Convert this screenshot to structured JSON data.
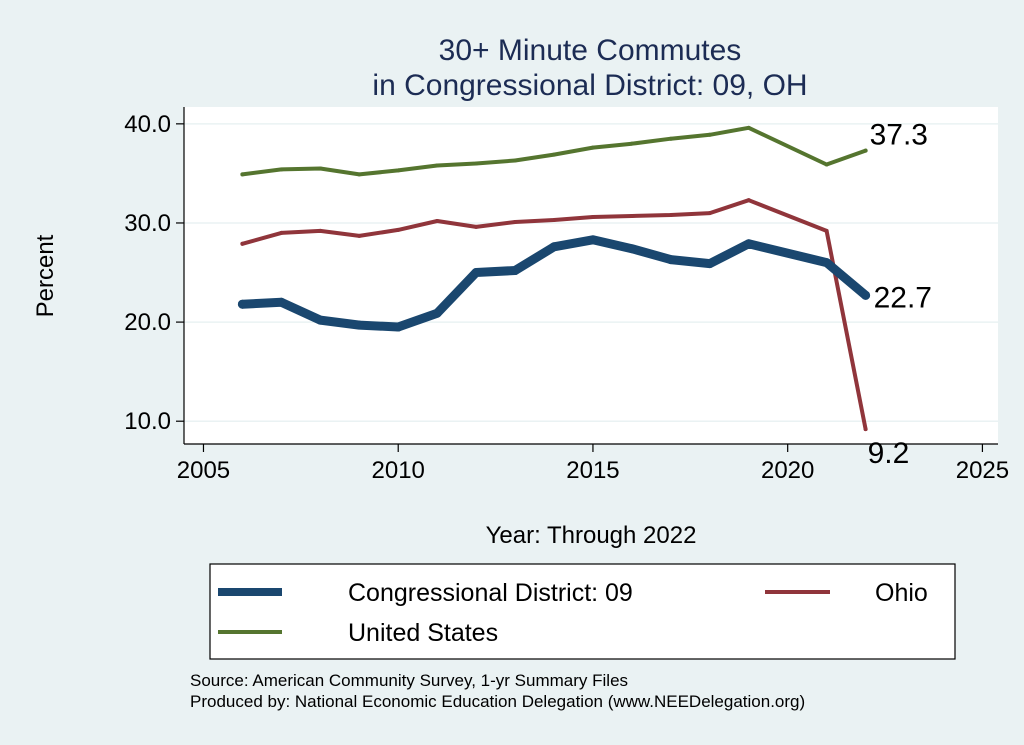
{
  "chart_data": {
    "type": "line",
    "title": [
      "30+ Minute Commutes",
      "in Congressional District:  09, OH"
    ],
    "xlabel": "Year: Through 2022",
    "ylabel": "Percent",
    "xlim": [
      2004.5,
      2025.4
    ],
    "ylim": [
      7.7,
      41.7
    ],
    "xticks": [
      2005,
      2010,
      2015,
      2020,
      2025
    ],
    "xtick_labels": [
      "2005",
      "2010",
      "2015",
      "2020",
      "2025"
    ],
    "yticks": [
      10,
      20,
      30,
      40
    ],
    "ytick_labels": [
      "10.0",
      "20.0",
      "30.0",
      "40.0"
    ],
    "grid": true,
    "x": [
      2006,
      2007,
      2008,
      2009,
      2010,
      2011,
      2012,
      2013,
      2014,
      2015,
      2016,
      2017,
      2018,
      2019,
      2021,
      2022
    ],
    "series": [
      {
        "name": "Congressional District:  09",
        "color": "#1a476f",
        "values": [
          21.8,
          22.0,
          20.2,
          19.7,
          19.5,
          20.9,
          25.0,
          25.2,
          27.6,
          28.3,
          27.4,
          26.3,
          25.9,
          27.9,
          26.0,
          22.7
        ],
        "end_label": "22.7"
      },
      {
        "name": "Ohio",
        "color": "#90353b",
        "values": [
          27.9,
          29.0,
          29.2,
          28.7,
          29.3,
          30.2,
          29.6,
          30.1,
          30.3,
          30.6,
          30.7,
          30.8,
          31.0,
          32.3,
          29.2,
          9.2
        ],
        "end_label": "9.2"
      },
      {
        "name": "United States",
        "color": "#55752f",
        "values": [
          34.9,
          35.4,
          35.5,
          34.9,
          35.3,
          35.8,
          36.0,
          36.3,
          36.9,
          37.6,
          38.0,
          38.5,
          38.9,
          39.6,
          35.9,
          37.3
        ],
        "end_label": "37.3"
      }
    ],
    "legend": {
      "position": "bottom",
      "entries": [
        "Congressional District:  09",
        "Ohio",
        "United States"
      ]
    },
    "notes": [
      "Source: American Community Survey, 1-yr Summary Files",
      "Produced by: National Economic Education Delegation (www.NEEDelegation.org)"
    ]
  }
}
